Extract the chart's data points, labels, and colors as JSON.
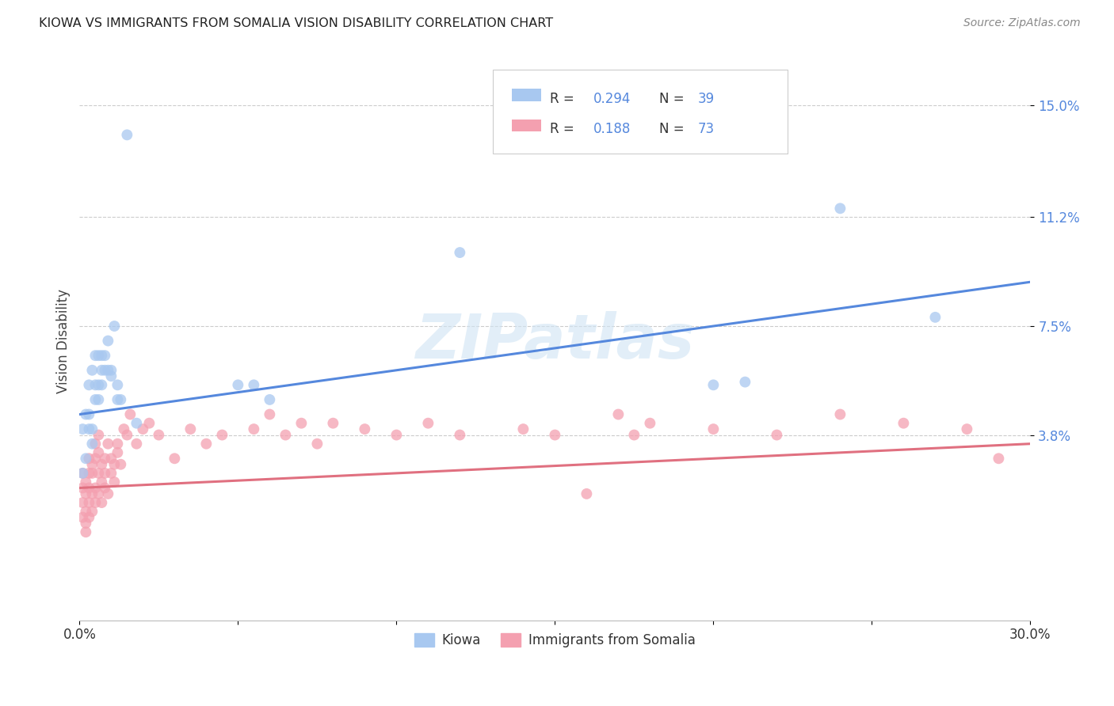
{
  "title": "KIOWA VS IMMIGRANTS FROM SOMALIA VISION DISABILITY CORRELATION CHART",
  "source": "Source: ZipAtlas.com",
  "ylabel": "Vision Disability",
  "yticks": [
    0.038,
    0.075,
    0.112,
    0.15
  ],
  "ytick_labels": [
    "3.8%",
    "7.5%",
    "11.2%",
    "15.0%"
  ],
  "xmin": 0.0,
  "xmax": 0.3,
  "ymin": -0.025,
  "ymax": 0.165,
  "watermark": "ZIPatlas",
  "kiowa_color": "#a8c8f0",
  "somalia_color": "#f4a0b0",
  "blue_line_color": "#5588dd",
  "pink_line_color": "#e07080",
  "kiowa_x": [
    0.001,
    0.002,
    0.003,
    0.003,
    0.004,
    0.004,
    0.005,
    0.005,
    0.006,
    0.006,
    0.007,
    0.007,
    0.008,
    0.008,
    0.009,
    0.01,
    0.011,
    0.012,
    0.013,
    0.015,
    0.018,
    0.05,
    0.055,
    0.06,
    0.12,
    0.2,
    0.21,
    0.24,
    0.27,
    0.001,
    0.002,
    0.003,
    0.004,
    0.005,
    0.006,
    0.007,
    0.009,
    0.01,
    0.012
  ],
  "kiowa_y": [
    0.025,
    0.03,
    0.04,
    0.055,
    0.035,
    0.06,
    0.055,
    0.065,
    0.05,
    0.065,
    0.06,
    0.065,
    0.06,
    0.065,
    0.07,
    0.06,
    0.075,
    0.055,
    0.05,
    0.14,
    0.042,
    0.055,
    0.055,
    0.05,
    0.1,
    0.055,
    0.056,
    0.115,
    0.078,
    0.04,
    0.045,
    0.045,
    0.04,
    0.05,
    0.055,
    0.055,
    0.06,
    0.058,
    0.05
  ],
  "somalia_x": [
    0.001,
    0.001,
    0.001,
    0.002,
    0.002,
    0.002,
    0.002,
    0.003,
    0.003,
    0.003,
    0.003,
    0.003,
    0.004,
    0.004,
    0.004,
    0.004,
    0.005,
    0.005,
    0.005,
    0.005,
    0.006,
    0.006,
    0.006,
    0.006,
    0.007,
    0.007,
    0.007,
    0.008,
    0.008,
    0.008,
    0.009,
    0.009,
    0.01,
    0.01,
    0.011,
    0.011,
    0.012,
    0.012,
    0.013,
    0.014,
    0.015,
    0.016,
    0.018,
    0.02,
    0.022,
    0.025,
    0.03,
    0.035,
    0.04,
    0.045,
    0.055,
    0.06,
    0.065,
    0.07,
    0.075,
    0.08,
    0.09,
    0.1,
    0.11,
    0.12,
    0.14,
    0.15,
    0.16,
    0.17,
    0.175,
    0.18,
    0.2,
    0.22,
    0.24,
    0.26,
    0.28,
    0.29,
    0.001,
    0.002
  ],
  "somalia_y": [
    0.02,
    0.015,
    0.01,
    0.018,
    0.012,
    0.022,
    0.008,
    0.02,
    0.015,
    0.025,
    0.01,
    0.03,
    0.018,
    0.025,
    0.012,
    0.028,
    0.02,
    0.03,
    0.015,
    0.035,
    0.025,
    0.032,
    0.018,
    0.038,
    0.022,
    0.028,
    0.015,
    0.03,
    0.02,
    0.025,
    0.018,
    0.035,
    0.025,
    0.03,
    0.028,
    0.022,
    0.032,
    0.035,
    0.028,
    0.04,
    0.038,
    0.045,
    0.035,
    0.04,
    0.042,
    0.038,
    0.03,
    0.04,
    0.035,
    0.038,
    0.04,
    0.045,
    0.038,
    0.042,
    0.035,
    0.042,
    0.04,
    0.038,
    0.042,
    0.038,
    0.04,
    0.038,
    0.018,
    0.045,
    0.038,
    0.042,
    0.04,
    0.038,
    0.045,
    0.042,
    0.04,
    0.03,
    0.025,
    0.005
  ],
  "blue_line_y_at_0": 0.045,
  "blue_line_y_at_30": 0.09,
  "pink_line_y_at_0": 0.02,
  "pink_line_y_at_30": 0.035
}
